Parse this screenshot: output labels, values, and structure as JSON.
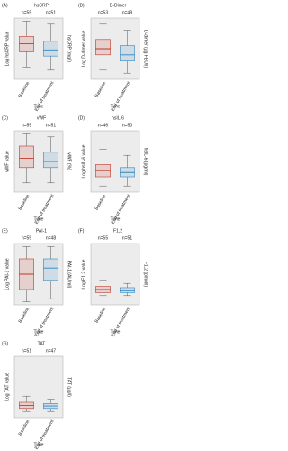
{
  "chart_data": [
    {
      "type": "box",
      "label": "(A)",
      "title": "hsCRP",
      "n_labels": [
        "n=55",
        "n=51"
      ],
      "ylabel": "Log hsCRP value",
      "y2label": "hsCRP (mg/l)",
      "xlabel": "Time",
      "categories": [
        "Baseline",
        "End of treatment"
      ],
      "colors": [
        "#c0392b",
        "#2e86c1"
      ],
      "ylim": [
        0,
        10
      ],
      "boxes": [
        {
          "whislo": 2,
          "q1": 4.5,
          "med": 5.8,
          "q3": 7,
          "whishi": 9.5
        },
        {
          "whislo": 1.5,
          "q1": 3.8,
          "med": 4.8,
          "q3": 6.2,
          "whishi": 9
        }
      ]
    },
    {
      "type": "box",
      "label": "(B)",
      "title": "D-Dimer",
      "n_labels": [
        "n=53",
        "n=49"
      ],
      "ylabel": "Log D-dimer value",
      "y2label": "D-dimer (µg FEU/l)",
      "xlabel": "Time",
      "categories": [
        "Baseline",
        "End of treatment"
      ],
      "colors": [
        "#c0392b",
        "#2e86c1"
      ],
      "ylim": [
        0,
        10
      ],
      "boxes": [
        {
          "whislo": 1.5,
          "q1": 4,
          "med": 5,
          "q3": 6.5,
          "whishi": 9
        },
        {
          "whislo": 1,
          "q1": 3,
          "med": 4,
          "q3": 5.5,
          "whishi": 8
        }
      ]
    },
    {
      "type": "box",
      "label": "(C)",
      "title": "vWF",
      "n_labels": [
        "n=55",
        "n=51"
      ],
      "ylabel": "vWF value",
      "y2label": "vWF (%)",
      "xlabel": "Time",
      "categories": [
        "Baseline",
        "End of treatment"
      ],
      "colors": [
        "#c0392b",
        "#2e86c1"
      ],
      "ylim": [
        0,
        10
      ],
      "boxes": [
        {
          "whislo": 1.5,
          "q1": 4,
          "med": 5.5,
          "q3": 7.5,
          "whishi": 9.5
        },
        {
          "whislo": 1.5,
          "q1": 4,
          "med": 5,
          "q3": 6.5,
          "whishi": 9
        }
      ]
    },
    {
      "type": "box",
      "label": "(D)",
      "title": "hsIL-6",
      "n_labels": [
        "n=46",
        "n=50"
      ],
      "ylabel": "Log hsIL-6 value",
      "y2label": "hsIL-6 (pg/ml)",
      "xlabel": "Time",
      "categories": [
        "Baseline",
        "End of treatment"
      ],
      "colors": [
        "#c0392b",
        "#2e86c1"
      ],
      "ylim": [
        0,
        10
      ],
      "boxes": [
        {
          "whislo": 1,
          "q1": 2.5,
          "med": 3.5,
          "q3": 4.5,
          "whishi": 7
        },
        {
          "whislo": 1,
          "q1": 2.5,
          "med": 3.2,
          "q3": 4,
          "whishi": 6
        }
      ]
    },
    {
      "type": "box",
      "label": "(E)",
      "title": "PAI-1",
      "n_labels": [
        "n=55",
        "n=48"
      ],
      "ylabel": "Log PAI-1 value",
      "y2label": "PAI-1 (AU/ml)",
      "xlabel": "Time",
      "categories": [
        "Baseline",
        "End of treatment"
      ],
      "colors": [
        "#c0392b",
        "#2e86c1"
      ],
      "ylim": [
        0,
        10
      ],
      "boxes": [
        {
          "whislo": 0.5,
          "q1": 2.5,
          "med": 5,
          "q3": 7.5,
          "whishi": 9.5
        },
        {
          "whislo": 1,
          "q1": 4,
          "med": 6,
          "q3": 7.5,
          "whishi": 9.5
        }
      ]
    },
    {
      "type": "box",
      "label": "(F)",
      "title": "F1,2",
      "n_labels": [
        "n=55",
        "n=51"
      ],
      "ylabel": "Log F1,2 value",
      "y2label": "F1,2 (pmol/l)",
      "xlabel": "Time",
      "categories": [
        "Baseline",
        "End of treatment"
      ],
      "colors": [
        "#c0392b",
        "#2e86c1"
      ],
      "ylim": [
        0,
        10
      ],
      "boxes": [
        {
          "whislo": 1.5,
          "q1": 2,
          "med": 2.5,
          "q3": 3,
          "whishi": 4
        },
        {
          "whislo": 1.5,
          "q1": 2,
          "med": 2.3,
          "q3": 2.8,
          "whishi": 3.5
        }
      ]
    },
    {
      "type": "box",
      "label": "(G)",
      "title": "TAT",
      "n_labels": [
        "n=51",
        "n=47"
      ],
      "ylabel": "Log TAT value",
      "y2label": "TAT (µg/l)",
      "xlabel": "Time",
      "categories": [
        "Baseline",
        "End of treatment"
      ],
      "colors": [
        "#c0392b",
        "#2e86c1"
      ],
      "ylim": [
        0,
        10
      ],
      "boxes": [
        {
          "whislo": 1,
          "q1": 1.5,
          "med": 2,
          "q3": 2.5,
          "whishi": 3.5
        },
        {
          "whislo": 1,
          "q1": 1.5,
          "med": 1.9,
          "q3": 2.3,
          "whishi": 3
        }
      ]
    }
  ]
}
